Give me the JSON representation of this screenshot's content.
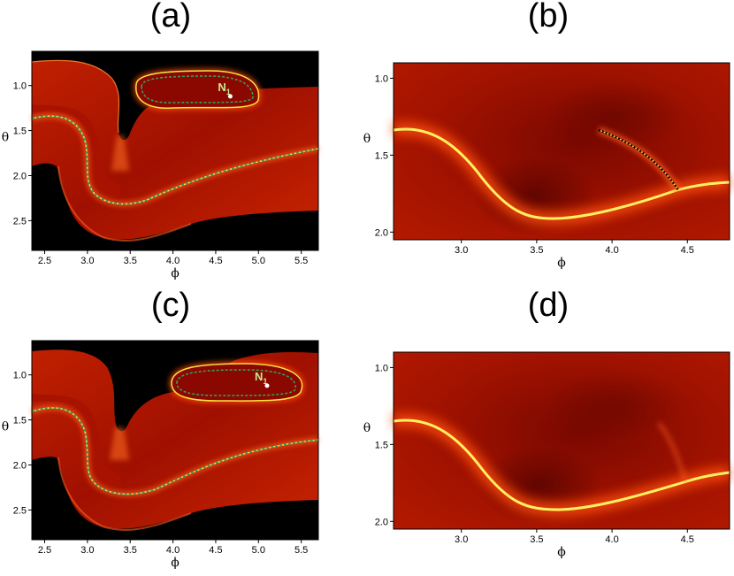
{
  "panels": [
    {
      "label": "(a)",
      "type": "heatmap",
      "xlabel": "ϕ",
      "ylabel": "θ",
      "xlim": [
        2.35,
        5.7
      ],
      "ylim": [
        2.83,
        0.62
      ],
      "xticks": [
        "2.5",
        "3.0",
        "3.5",
        "4.0",
        "4.5",
        "5.0",
        "5.5"
      ],
      "yticks": [
        "1.0",
        "1.5",
        "2.0",
        "2.5"
      ],
      "annotation": "N",
      "annotation_sub": "1",
      "point": [
        4.67,
        1.12
      ],
      "colors": {
        "background": "#000000",
        "field": "#b01000",
        "ridge": "#ffe040",
        "dashed_curve": "#3c9a5a"
      }
    },
    {
      "label": "(b)",
      "type": "heatmap",
      "xlabel": "ϕ",
      "ylabel": "θ",
      "xlim": [
        2.55,
        4.78
      ],
      "ylim": [
        2.05,
        0.9
      ],
      "xticks": [
        "3.0",
        "3.5",
        "4.0",
        "4.5"
      ],
      "yticks": [
        "1.0",
        "1.5",
        "2.0"
      ],
      "colors": {
        "field": "#8a0a00",
        "ridge": "#fff060",
        "dotted_curve": "#000000"
      }
    },
    {
      "label": "(c)",
      "type": "heatmap",
      "xlabel": "ϕ",
      "ylabel": "θ",
      "xlim": [
        2.35,
        5.7
      ],
      "ylim": [
        2.83,
        0.62
      ],
      "xticks": [
        "2.5",
        "3.0",
        "3.5",
        "4.0",
        "4.5",
        "5.0",
        "5.5"
      ],
      "yticks": [
        "1.0",
        "1.5",
        "2.0",
        "2.5"
      ],
      "annotation": "N",
      "annotation_sub": "1",
      "point": [
        5.1,
        1.12
      ],
      "colors": {
        "background": "#000000",
        "field": "#b01000",
        "ridge": "#ffe040",
        "dashed_curve": "#3c9a5a"
      }
    },
    {
      "label": "(d)",
      "type": "heatmap",
      "xlabel": "ϕ",
      "ylabel": "θ",
      "xlim": [
        2.55,
        4.78
      ],
      "ylim": [
        2.05,
        0.9
      ],
      "xticks": [
        "3.0",
        "3.5",
        "4.0",
        "4.5"
      ],
      "yticks": [
        "1.0",
        "1.5",
        "2.0"
      ],
      "colors": {
        "field": "#8a0a00",
        "ridge": "#fff060"
      }
    }
  ],
  "chart_data": [
    {
      "type": "heatmap",
      "title": "(a)",
      "xlabel": "ϕ",
      "ylabel": "θ",
      "xlim": [
        2.35,
        5.7
      ],
      "ylim": [
        0.62,
        2.83
      ],
      "annotations": [
        {
          "text": "N1",
          "x": 4.67,
          "y": 1.12
        }
      ]
    },
    {
      "type": "heatmap",
      "title": "(b)",
      "xlabel": "ϕ",
      "ylabel": "θ",
      "xlim": [
        2.55,
        4.78
      ],
      "ylim": [
        0.9,
        2.05
      ]
    },
    {
      "type": "heatmap",
      "title": "(c)",
      "xlabel": "ϕ",
      "ylabel": "θ",
      "xlim": [
        2.35,
        5.7
      ],
      "ylim": [
        0.62,
        2.83
      ],
      "annotations": [
        {
          "text": "N1",
          "x": 5.1,
          "y": 1.12
        }
      ]
    },
    {
      "type": "heatmap",
      "title": "(d)",
      "xlabel": "ϕ",
      "ylabel": "θ",
      "xlim": [
        2.55,
        4.78
      ],
      "ylim": [
        0.9,
        2.05
      ]
    }
  ]
}
